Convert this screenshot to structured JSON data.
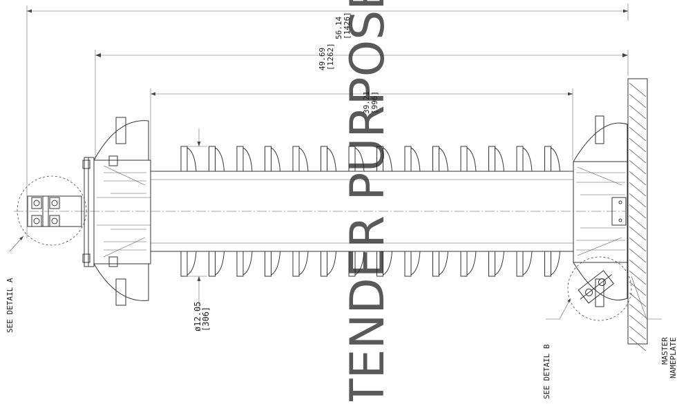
{
  "dimensions": {
    "overall": {
      "value": "56.14",
      "alt": "[1426]"
    },
    "span": {
      "value": "49.69",
      "alt": "[1262]"
    },
    "housing": {
      "value": "39.21",
      "alt": "[996]"
    },
    "diameter": {
      "value": "ø12.05",
      "alt": "[306]"
    }
  },
  "callouts": {
    "detail_a": "SEE DETAIL A",
    "detail_b": "SEE DETAIL B",
    "nameplate_line1": "MASTER",
    "nameplate_line2": "NAMEPLATE"
  },
  "watermark": {
    "text": "TENDER PURPOSE",
    "color": "#f05a5a"
  }
}
